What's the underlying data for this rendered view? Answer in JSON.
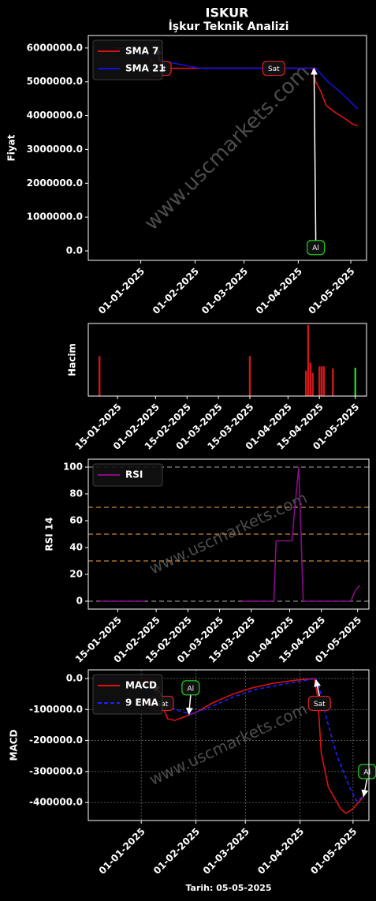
{
  "chart_data": [
    {
      "type": "line",
      "title": "ISKUR",
      "subtitle": "İşkur Teknik Analizi",
      "ylabel": "Fiyat",
      "watermark": "www.uscmarkets.com",
      "xlim": [
        "02-12-2024",
        "10-05-2025"
      ],
      "xticks": [
        "01-01-2025",
        "01-02-2025",
        "01-03-2025",
        "01-04-2025",
        "01-05-2025"
      ],
      "ylim": [
        -280000,
        6370000
      ],
      "yticks": [
        {
          "value": 0,
          "label": "0.0"
        },
        {
          "value": 1000000,
          "label": "1000000.0"
        },
        {
          "value": 2000000,
          "label": "2000000.0"
        },
        {
          "value": 3000000,
          "label": "3000000.0"
        },
        {
          "value": 4000000,
          "label": "4000000.0"
        },
        {
          "value": 5000000,
          "label": "5000000.0"
        },
        {
          "value": 6000000,
          "label": "6000000.0"
        }
      ],
      "legend": "upper left",
      "series": [
        {
          "name": "SMA 7",
          "color": "#e01010",
          "x": [
            "17-12-2024",
            "31-12-2024",
            "08-01-2025",
            "11-01-2025",
            "09-04-2025",
            "11-04-2025",
            "14-04-2025",
            "17-04-2025",
            "22-04-2025",
            "28-04-2025",
            "02-05-2025",
            "05-05-2025"
          ],
          "values": [
            6000000,
            6000000,
            5600000,
            5400000,
            5400000,
            5000000,
            4700000,
            4300000,
            4100000,
            3900000,
            3750000,
            3700000
          ]
        },
        {
          "name": "SMA 21",
          "color": "#1010e0",
          "x": [
            "17-12-2024",
            "31-12-2024",
            "15-01-2025",
            "04-02-2025",
            "11-04-2025",
            "18-04-2025",
            "25-04-2025",
            "30-04-2025",
            "05-05-2025"
          ],
          "values": [
            6000000,
            5800000,
            5600000,
            5400000,
            5400000,
            5000000,
            4700000,
            4450000,
            4200000
          ]
        }
      ],
      "annotations": [
        {
          "text": "Sat",
          "color": "#e02020",
          "x": "12-01-2025",
          "y": 5400000,
          "arrow_to": [
            "10-01-2025",
            6000000
          ]
        },
        {
          "text": "Sat",
          "color": "#e02020",
          "x": "18-03-2025",
          "y": 5400000
        },
        {
          "text": "Al",
          "color": "#20d020",
          "x": "11-04-2025",
          "y": 100000,
          "arrow_to": [
            "10-04-2025",
            5400000
          ]
        }
      ]
    },
    {
      "type": "bar",
      "ylabel": "Hacim",
      "xlim": [
        "02-01-2025",
        "06-05-2025"
      ],
      "xticks": [
        "15-01-2025",
        "01-02-2025",
        "15-02-2025",
        "01-03-2025",
        "15-03-2025",
        "01-04-2025",
        "15-04-2025",
        "01-05-2025"
      ],
      "ylim": [
        0,
        100
      ],
      "x": [
        "07-01-2025",
        "15-03-2025",
        "09-04-2025",
        "10-04-2025",
        "11-04-2025",
        "12-04-2025",
        "15-04-2025",
        "16-04-2025",
        "17-04-2025",
        "21-04-2025",
        "01-05-2025"
      ],
      "values": [
        55,
        55,
        35,
        98,
        46,
        32,
        41,
        41,
        41,
        38,
        39
      ],
      "colors": [
        "#d01818",
        "#d01818",
        "#d01818",
        "#d01818",
        "#d01818",
        "#d01818",
        "#d01818",
        "#d01818",
        "#d01818",
        "#d01818",
        "#20d020"
      ]
    },
    {
      "type": "line",
      "ylabel": "RSI 14",
      "watermark": "www.uscmarkets.com",
      "xlim": [
        "02-01-2025",
        "06-05-2025"
      ],
      "xticks": [
        "15-01-2025",
        "01-02-2025",
        "15-02-2025",
        "01-03-2025",
        "15-03-2025",
        "01-04-2025",
        "15-04-2025",
        "01-05-2025"
      ],
      "ylim": [
        -5.9,
        105.9
      ],
      "yticks": [
        0,
        20,
        40,
        60,
        80,
        100
      ],
      "legend": "upper left",
      "hlines": [
        {
          "value": 0,
          "color": "#888888"
        },
        {
          "value": 30,
          "color": "#c8873a"
        },
        {
          "value": 50,
          "color": "#c8873a"
        },
        {
          "value": 70,
          "color": "#c8873a"
        },
        {
          "value": 100,
          "color": "#888888"
        }
      ],
      "series": [
        {
          "name": "RSI",
          "color": "#8a0a8a",
          "x": [
            "07-01-2025",
            "27-01-2025",
            "05-02-2025",
            "11-03-2025",
            "25-03-2025",
            "26-03-2025",
            "02-04-2025",
            "03-04-2025",
            "05-04-2025",
            "07-04-2025",
            "28-04-2025",
            "30-04-2025",
            "02-05-2025"
          ],
          "values": [
            0,
            0,
            null,
            0,
            0,
            45,
            45,
            65,
            100,
            0,
            0,
            8,
            12
          ]
        }
      ]
    },
    {
      "type": "line",
      "ylabel": "MACD",
      "xlabel": "Tarih: 05-05-2025",
      "watermark": "www.uscmarkets.com",
      "grid": true,
      "xlim": [
        "02-12-2024",
        "10-05-2025"
      ],
      "xticks": [
        "01-01-2025",
        "01-02-2025",
        "01-03-2025",
        "01-04-2025",
        "01-05-2025"
      ],
      "ylim": [
        -458000,
        28000
      ],
      "yticks": [
        {
          "value": 0,
          "label": "0.0"
        },
        {
          "value": -100000,
          "label": "-100000.0"
        },
        {
          "value": -200000,
          "label": "-200000.0"
        },
        {
          "value": -300000,
          "label": "-300000.0"
        },
        {
          "value": -400000,
          "label": "-400000.0"
        }
      ],
      "legend": "upper left",
      "series": [
        {
          "name": "MACD",
          "color": "#e01010",
          "x": [
            "05-12-2024",
            "06-01-2025",
            "16-01-2025",
            "20-01-2025",
            "27-01-2025",
            "01-02-2025",
            "10-02-2025",
            "22-02-2025",
            "05-03-2025",
            "17-03-2025",
            "30-03-2025",
            "09-04-2025",
            "11-04-2025",
            "13-04-2025",
            "17-04-2025",
            "24-04-2025",
            "27-04-2025",
            "01-05-2025",
            "07-05-2025"
          ],
          "values": [
            0,
            0,
            -130000,
            -135000,
            -120000,
            -110000,
            -80000,
            -50000,
            -30000,
            -15000,
            -5000,
            0,
            -60000,
            -240000,
            -350000,
            -420000,
            -435000,
            -420000,
            -380000
          ]
        },
        {
          "name": "9 EMA",
          "color": "#2020ff",
          "dash": true,
          "x": [
            "05-12-2024",
            "28-12-2024",
            "08-01-2025",
            "20-01-2025",
            "29-01-2025",
            "10-02-2025",
            "22-02-2025",
            "07-03-2025",
            "26-03-2025",
            "10-04-2025",
            "12-04-2025",
            "16-04-2025",
            "22-04-2025",
            "29-04-2025",
            "03-05-2025",
            "07-05-2025"
          ],
          "values": [
            0,
            0,
            -60000,
            -100000,
            -115000,
            -90000,
            -60000,
            -35000,
            -15000,
            0,
            -30000,
            -130000,
            -250000,
            -350000,
            -395000,
            -380000
          ]
        }
      ],
      "annotations": [
        {
          "text": "Sat",
          "color": "#e02020",
          "x": "13-01-2025",
          "y": -80000,
          "arrow_to": [
            "08-01-2025",
            -20000
          ]
        },
        {
          "text": "Al",
          "color": "#20d020",
          "x": "29-01-2025",
          "y": -30000,
          "arrow_to": [
            "28-01-2025",
            -115000
          ]
        },
        {
          "text": "Sat",
          "color": "#e02020",
          "x": "12-04-2025",
          "y": -80000,
          "arrow_to": [
            "10-04-2025",
            -5000
          ]
        },
        {
          "text": "Al",
          "color": "#20d020",
          "x": "09-05-2025",
          "y": -300000,
          "arrow_to": [
            "07-05-2025",
            -380000
          ]
        }
      ]
    }
  ]
}
